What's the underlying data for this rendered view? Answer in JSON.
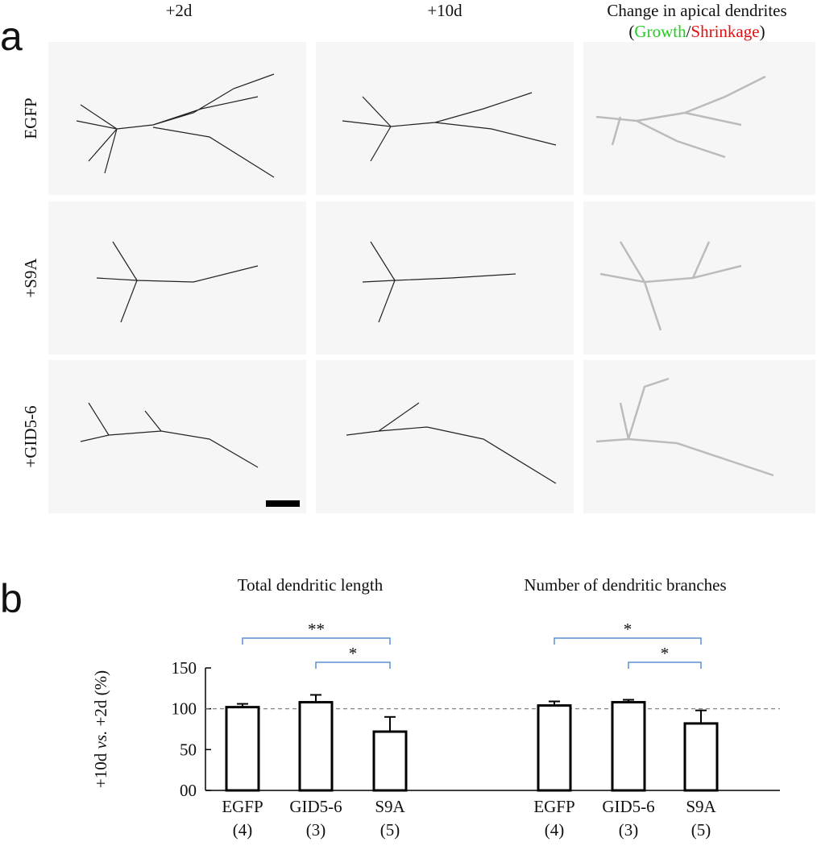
{
  "panel_a": {
    "label": "a",
    "columns": [
      "+2d",
      "+10d",
      "Change in apical dendrites"
    ],
    "legend_parts": [
      "(",
      "Growth",
      "/",
      "Shrinkage",
      ")"
    ],
    "rows": [
      "EGFP",
      "+S9A",
      "+GID5-6"
    ]
  },
  "panel_b_label": "b",
  "chart_data": [
    {
      "type": "bar",
      "title": "Total dendritic length",
      "y_label_parts": [
        "+10d ",
        "vs.",
        " +2d (%)"
      ],
      "categories": [
        "EGFP",
        "GID5-6",
        "S9A"
      ],
      "n_labels": [
        "(4)",
        "(3)",
        "(5)"
      ],
      "values": [
        102,
        108,
        72
      ],
      "errors": [
        4,
        9,
        18
      ],
      "ylim": [
        0,
        150
      ],
      "yticks": [
        {
          "value": 0,
          "label": "00"
        },
        50,
        100,
        150
      ],
      "hline": 100,
      "annotations": [
        {
          "text": "**",
          "between": [
            "EGFP",
            "S9A"
          ]
        },
        {
          "text": "*",
          "between": [
            "GID5-6",
            "S9A"
          ]
        }
      ]
    },
    {
      "type": "bar",
      "title": "Number of dendritic branches",
      "categories": [
        "EGFP",
        "GID5-6",
        "S9A"
      ],
      "n_labels": [
        "(4)",
        "(3)",
        "(5)"
      ],
      "values": [
        104,
        108,
        82
      ],
      "errors": [
        5,
        3,
        16
      ],
      "ylim": [
        0,
        150
      ],
      "annotations": [
        {
          "text": "*",
          "between": [
            "EGFP",
            "S9A"
          ]
        },
        {
          "text": "*",
          "between": [
            "GID5-6",
            "S9A"
          ]
        }
      ]
    }
  ]
}
